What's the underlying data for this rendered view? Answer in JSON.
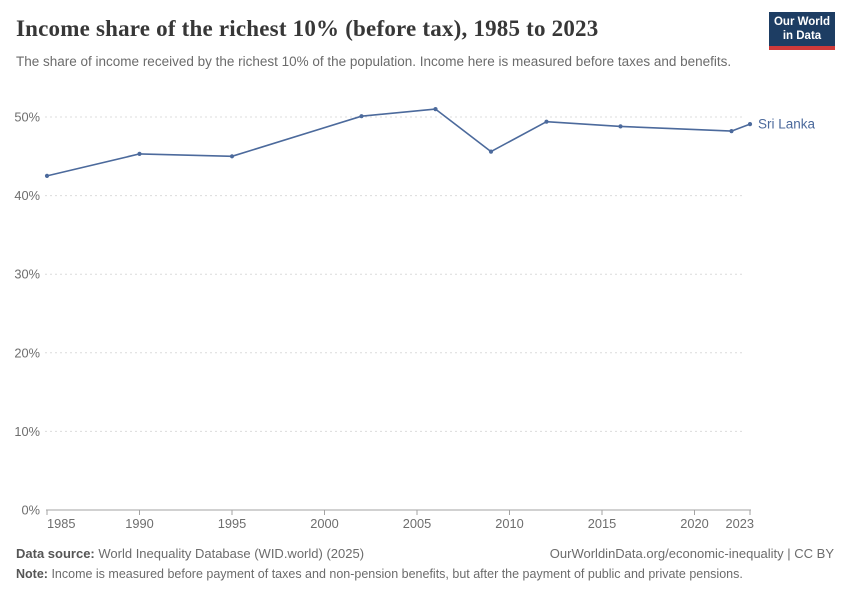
{
  "header": {
    "title": "Income share of the richest 10% (before tax), 1985 to 2023",
    "subtitle": "The share of income received by the richest 10% of the population. Income here is measured before taxes and benefits.",
    "logo": {
      "line1": "Our World",
      "line2": "in Data",
      "bg_color": "#1d3d63",
      "accent_color": "#cf3a3a",
      "text_color": "#ffffff"
    }
  },
  "chart_data": {
    "type": "line",
    "title": "Income share of the richest 10% (before tax), 1985 to 2023",
    "entity": "Sri Lanka",
    "series": [
      {
        "name": "Sri Lanka",
        "color": "#4c6a9c",
        "points": [
          {
            "year": 1985,
            "value": 42.5
          },
          {
            "year": 1990,
            "value": 45.3
          },
          {
            "year": 1995,
            "value": 45.0
          },
          {
            "year": 2002,
            "value": 50.1
          },
          {
            "year": 2006,
            "value": 51.0
          },
          {
            "year": 2009,
            "value": 45.6
          },
          {
            "year": 2012,
            "value": 49.4
          },
          {
            "year": 2016,
            "value": 48.8
          },
          {
            "year": 2022,
            "value": 48.2
          },
          {
            "year": 2023,
            "value": 49.1
          }
        ]
      }
    ],
    "xlim": [
      1985,
      2023
    ],
    "ylim": [
      0,
      55
    ],
    "xticks": [
      1985,
      1990,
      1995,
      2000,
      2005,
      2010,
      2015,
      2020,
      2023
    ],
    "yticks": [
      0,
      10,
      20,
      30,
      40,
      50
    ],
    "ytick_suffix": "%",
    "grid": "dashed-horizontal",
    "legend_position": "line-end-label",
    "axis_color": "#a3a3a3",
    "grid_color": "#dcdcdc",
    "tick_label_color": "#6e6e6e"
  },
  "footer": {
    "data_source_label": "Data source:",
    "data_source_value": "World Inequality Database (WID.world) (2025)",
    "credit": "OurWorldinData.org/economic-inequality | CC BY",
    "note_label": "Note:",
    "note_value": "Income is measured before payment of taxes and non-pension benefits, but after the payment of public and private pensions."
  }
}
